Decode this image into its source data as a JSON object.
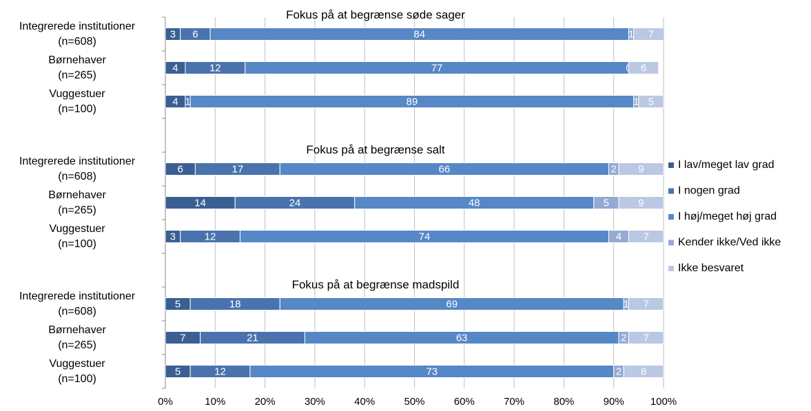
{
  "chart_data": {
    "type": "stacked-bar-horizontal",
    "annotations": [
      "Fokus på at begrænse søde sager",
      "Fokus på at begrænse salt",
      "Fokus på at begrænse madspild"
    ],
    "categories": [
      "Integrerede institutioner\n(n=608)",
      "Børnehaver\n(n=265)",
      "Vuggestuer\n(n=100)",
      null,
      "Integrerede institutioner\n(n=608)",
      "Børnehaver\n(n=265)",
      "Vuggestuer\n(n=100)",
      null,
      "Integrerede institutioner\n(n=608)",
      "Børnehaver\n(n=265)",
      "Vuggestuer\n(n=100)"
    ],
    "series": [
      {
        "name": "I lav/meget lav grad",
        "color": "#3b5f92",
        "values": [
          3,
          4,
          4,
          null,
          6,
          14,
          3,
          null,
          5,
          7,
          5
        ]
      },
      {
        "name": "I nogen grad",
        "color": "#4a73ad",
        "values": [
          6,
          12,
          1,
          null,
          17,
          24,
          12,
          null,
          18,
          21,
          12
        ]
      },
      {
        "name": "I høj/meget høj grad",
        "color": "#5687c6",
        "values": [
          84,
          77,
          89,
          null,
          66,
          48,
          74,
          null,
          69,
          63,
          73
        ]
      },
      {
        "name": "Kender ikke/Ved ikke",
        "color": "#94aad5",
        "values": [
          1,
          0,
          1,
          null,
          2,
          5,
          4,
          null,
          1,
          2,
          2
        ]
      },
      {
        "name": "Ikke besvaret",
        "color": "#bac8e3",
        "values": [
          7,
          6,
          5,
          null,
          9,
          9,
          7,
          null,
          7,
          7,
          8
        ]
      }
    ],
    "xlim": [
      0,
      100
    ],
    "xticks": [
      {
        "value": 0,
        "label": "0%"
      },
      {
        "value": 10,
        "label": "10%"
      },
      {
        "value": 20,
        "label": "20%"
      },
      {
        "value": 30,
        "label": "30%"
      },
      {
        "value": 40,
        "label": "40%"
      },
      {
        "value": 50,
        "label": "50%"
      },
      {
        "value": 60,
        "label": "60%"
      },
      {
        "value": 70,
        "label": "70%"
      },
      {
        "value": 80,
        "label": "80%"
      },
      {
        "value": 90,
        "label": "90%"
      },
      {
        "value": 100,
        "label": "100%"
      }
    ],
    "grid": true,
    "legend": "right"
  }
}
